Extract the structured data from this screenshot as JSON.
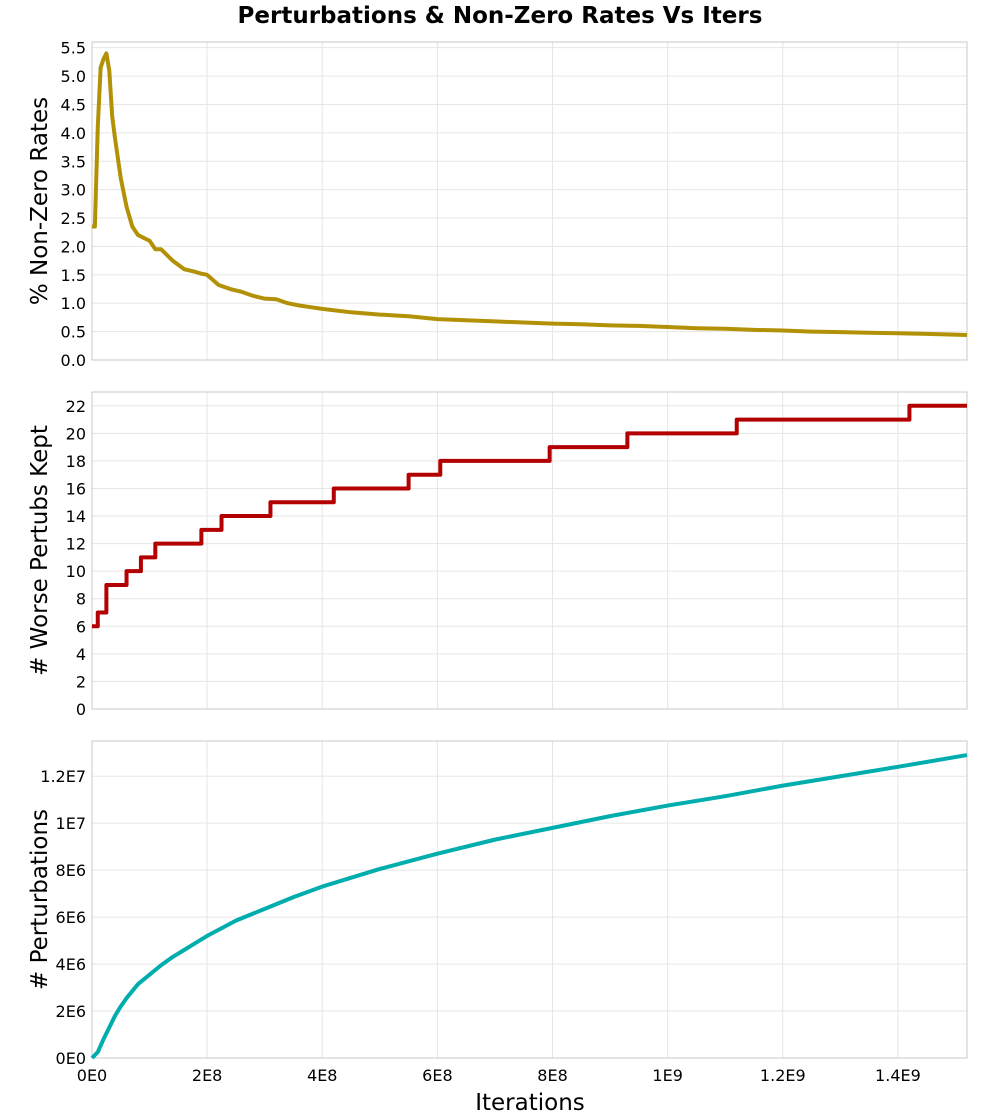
{
  "chart_data": {
    "type": "line",
    "title": "Perturbations & Non-Zero Rates Vs Iters",
    "xlabel": "Iterations",
    "xlim": [
      0,
      1520000000
    ],
    "xticks": [
      {
        "value": 0,
        "label": "0E0"
      },
      {
        "value": 200000000,
        "label": "2E8"
      },
      {
        "value": 400000000,
        "label": "4E8"
      },
      {
        "value": 600000000,
        "label": "6E8"
      },
      {
        "value": 800000000,
        "label": "8E8"
      },
      {
        "value": 1000000000,
        "label": "1E9"
      },
      {
        "value": 1200000000,
        "label": "1.2E9"
      },
      {
        "value": 1400000000,
        "label": "1.4E9"
      }
    ],
    "panels": [
      {
        "name": "non-zero-rates",
        "ylabel": "% Non-Zero Rates",
        "ylim": [
          0,
          5.6
        ],
        "color": "#b39106",
        "yticks": [
          {
            "value": 0,
            "label": "0.0"
          },
          {
            "value": 0.5,
            "label": "0.5"
          },
          {
            "value": 1.0,
            "label": "1.0"
          },
          {
            "value": 1.5,
            "label": "1.5"
          },
          {
            "value": 2.0,
            "label": "2.0"
          },
          {
            "value": 2.5,
            "label": "2.5"
          },
          {
            "value": 3.0,
            "label": "3.0"
          },
          {
            "value": 3.5,
            "label": "3.5"
          },
          {
            "value": 4.0,
            "label": "4.0"
          },
          {
            "value": 4.5,
            "label": "4.5"
          },
          {
            "value": 5.0,
            "label": "5.0"
          },
          {
            "value": 5.5,
            "label": "5.5"
          }
        ],
        "step": false,
        "x": [
          0,
          5000000,
          10000000,
          15000000,
          20000000,
          25000000,
          30000000,
          35000000,
          40000000,
          50000000,
          60000000,
          70000000,
          80000000,
          90000000,
          100000000,
          110000000,
          120000000,
          130000000,
          140000000,
          160000000,
          180000000,
          190000000,
          200000000,
          220000000,
          240000000,
          260000000,
          280000000,
          300000000,
          320000000,
          340000000,
          360000000,
          380000000,
          400000000,
          450000000,
          500000000,
          550000000,
          600000000,
          650000000,
          700000000,
          750000000,
          800000000,
          850000000,
          900000000,
          950000000,
          1000000000,
          1050000000,
          1100000000,
          1150000000,
          1200000000,
          1250000000,
          1300000000,
          1350000000,
          1400000000,
          1450000000,
          1520000000
        ],
        "values": [
          2.35,
          2.35,
          4.1,
          5.15,
          5.3,
          5.4,
          5.1,
          4.3,
          3.9,
          3.2,
          2.7,
          2.35,
          2.2,
          2.15,
          2.1,
          1.95,
          1.95,
          1.85,
          1.75,
          1.6,
          1.55,
          1.52,
          1.5,
          1.32,
          1.25,
          1.2,
          1.13,
          1.08,
          1.07,
          1.0,
          0.96,
          0.93,
          0.9,
          0.84,
          0.8,
          0.77,
          0.72,
          0.7,
          0.68,
          0.66,
          0.64,
          0.63,
          0.61,
          0.6,
          0.58,
          0.56,
          0.55,
          0.53,
          0.52,
          0.5,
          0.49,
          0.48,
          0.47,
          0.46,
          0.44
        ]
      },
      {
        "name": "worse-pertubs-kept",
        "ylabel": "# Worse Pertubs Kept",
        "ylim": [
          0,
          23
        ],
        "color": "#b30000",
        "yticks": [
          {
            "value": 0,
            "label": "0"
          },
          {
            "value": 2,
            "label": "2"
          },
          {
            "value": 4,
            "label": "4"
          },
          {
            "value": 6,
            "label": "6"
          },
          {
            "value": 8,
            "label": "8"
          },
          {
            "value": 10,
            "label": "10"
          },
          {
            "value": 12,
            "label": "12"
          },
          {
            "value": 14,
            "label": "14"
          },
          {
            "value": 16,
            "label": "16"
          },
          {
            "value": 18,
            "label": "18"
          },
          {
            "value": 20,
            "label": "20"
          },
          {
            "value": 22,
            "label": "22"
          }
        ],
        "step": true,
        "x": [
          0,
          10000000,
          25000000,
          60000000,
          85000000,
          110000000,
          190000000,
          225000000,
          310000000,
          420000000,
          550000000,
          605000000,
          795000000,
          930000000,
          1120000000,
          1420000000,
          1520000000
        ],
        "values": [
          6,
          7,
          9,
          10,
          11,
          12,
          13,
          14,
          15,
          16,
          17,
          18,
          19,
          20,
          21,
          22,
          22
        ]
      },
      {
        "name": "perturbations",
        "ylabel": "# Perturbations",
        "ylim": [
          0,
          13500000
        ],
        "color": "#00adad",
        "yticks": [
          {
            "value": 0,
            "label": "0E0"
          },
          {
            "value": 2000000,
            "label": "2E6"
          },
          {
            "value": 4000000,
            "label": "4E6"
          },
          {
            "value": 6000000,
            "label": "6E6"
          },
          {
            "value": 8000000,
            "label": "8E6"
          },
          {
            "value": 10000000,
            "label": "1E7"
          },
          {
            "value": 12000000,
            "label": "1.2E7"
          }
        ],
        "step": false,
        "x": [
          0,
          10000000,
          20000000,
          30000000,
          40000000,
          50000000,
          60000000,
          70000000,
          80000000,
          100000000,
          120000000,
          140000000,
          160000000,
          180000000,
          200000000,
          250000000,
          300000000,
          350000000,
          400000000,
          500000000,
          600000000,
          700000000,
          800000000,
          900000000,
          1000000000,
          1100000000,
          1200000000,
          1300000000,
          1400000000,
          1520000000
        ],
        "values": [
          0,
          250000,
          800000,
          1300000,
          1800000,
          2200000,
          2550000,
          2850000,
          3150000,
          3550000,
          3950000,
          4300000,
          4600000,
          4900000,
          5200000,
          5850000,
          6350000,
          6850000,
          7300000,
          8050000,
          8700000,
          9300000,
          9800000,
          10300000,
          10750000,
          11150000,
          11600000,
          12000000,
          12400000,
          12900000
        ]
      }
    ]
  }
}
